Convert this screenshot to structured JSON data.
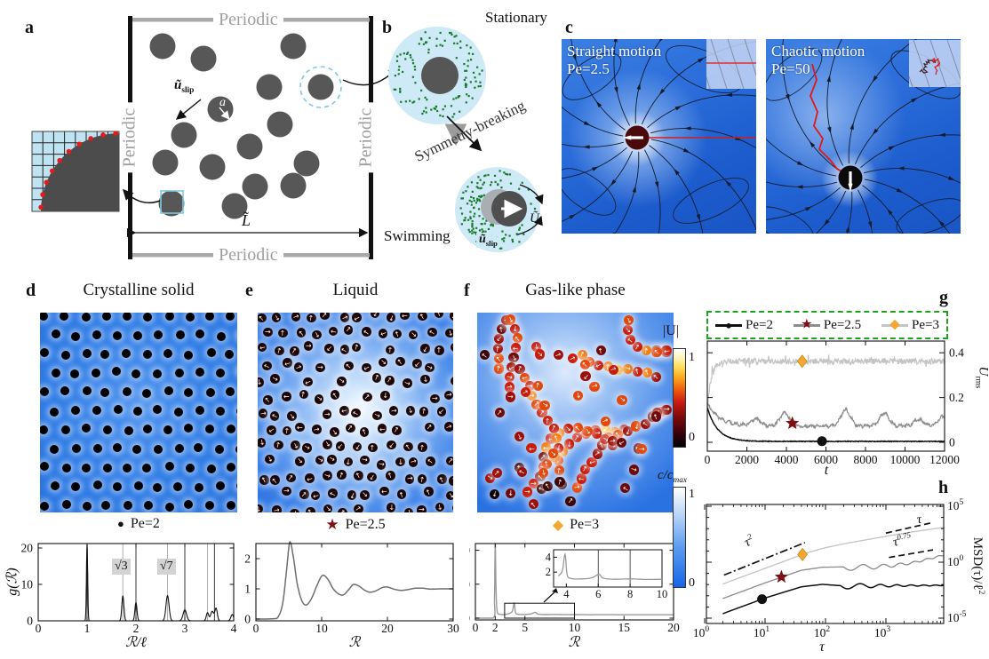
{
  "colors": {
    "star": "#7b1114",
    "diamond": "#f2a72e",
    "legend_border": "#1fa21f",
    "pe2": "#111111",
    "pe25": "#8c8c8c",
    "pe3": "#c4c4c4",
    "green_dot": "#1c7a2e",
    "red": "#d42020"
  },
  "figure_labels": {
    "a": "a",
    "b": "b",
    "c": "c",
    "d": "d",
    "e": "e",
    "f": "f",
    "g": "g",
    "h": "h"
  },
  "panel_a": {
    "periodic": "Periodic",
    "u_slip": "ũ",
    "u_slip_sub": "slip",
    "radius": "a",
    "length": "L̃"
  },
  "panel_b": {
    "stationary": "Stationary",
    "transition": "Symmetry-breaking",
    "swimming": "Swimming",
    "velocity": "Ũ",
    "u_slip": "ũ",
    "u_slip_sub": "slip"
  },
  "panel_c": {
    "left_title": "Straight motion",
    "left_pe": "Pe=2.5",
    "right_title": "Chaotic motion",
    "right_pe": "Pe=50"
  },
  "panel_d": {
    "title": "Crystalline solid",
    "legend_marker": "●",
    "legend": "Pe=2"
  },
  "panel_e": {
    "title": "Liquid",
    "legend_marker": "★",
    "legend": "Pe=2.5"
  },
  "panel_f": {
    "title": "Gas-like phase",
    "legend_marker": "◆",
    "legend": "Pe=3"
  },
  "colorbars": {
    "speed_label": "|U|",
    "speed_tick_top": "1",
    "speed_tick_bottom": "0",
    "conc_label": "c/c",
    "conc_label_sub": "max",
    "conc_tick_top": "1",
    "conc_tick_bottom": "0"
  },
  "panel_g": {
    "xlabel": "t",
    "ylabel": "U",
    "ylabel_sub": "rms"
  },
  "panel_h": {
    "xlabel": "τ",
    "ylabel": "MSD(τ)/ℓ",
    "ylabel_exp": "2"
  },
  "chart_data": [
    {
      "id": "gr_crystalline",
      "type": "line",
      "xlabel": "ℛ/ℓ",
      "ylabel": "g(ℛ)",
      "xlim": [
        0,
        4
      ],
      "ylim": [
        0,
        21.5
      ],
      "xticks": [
        0,
        1,
        2,
        3,
        4
      ],
      "yticks": [
        0,
        10,
        20
      ],
      "vlines_gray": [
        1.732,
        2.646,
        3.464
      ],
      "vlines_black": [
        1,
        2,
        3,
        3.606
      ],
      "annotations": [
        {
          "text": "√3",
          "x": 1.732
        },
        {
          "text": "√7",
          "x": 2.646
        }
      ],
      "peaks": [
        {
          "x": 1,
          "h": 21,
          "w": 0.018
        },
        {
          "x": 1.732,
          "h": 6.8,
          "w": 0.03
        },
        {
          "x": 2,
          "h": 5,
          "w": 0.03
        },
        {
          "x": 2.646,
          "h": 6.9,
          "w": 0.045
        },
        {
          "x": 3,
          "h": 3,
          "w": 0.05
        },
        {
          "x": 3.464,
          "h": 2.2,
          "w": 0.035
        },
        {
          "x": 3.56,
          "h": 2.6,
          "w": 0.045
        },
        {
          "x": 3.64,
          "h": 3.4,
          "w": 0.035
        },
        {
          "x": 3.97,
          "h": 1.7,
          "w": 0.04
        }
      ]
    },
    {
      "id": "gr_liquid",
      "type": "line",
      "xlabel": "ℛ",
      "xlim": [
        0,
        30
      ],
      "ylim": [
        0,
        2.7
      ],
      "xticks": [
        0,
        10,
        20,
        30
      ],
      "yticks": [
        0,
        1,
        2
      ],
      "points": [
        [
          0,
          0
        ],
        [
          2.6,
          0.01
        ],
        [
          3.4,
          0.08
        ],
        [
          4.1,
          0.55
        ],
        [
          4.7,
          1.7
        ],
        [
          5.15,
          2.55
        ],
        [
          5.7,
          2.05
        ],
        [
          6.3,
          1.15
        ],
        [
          7.0,
          0.6
        ],
        [
          7.7,
          0.47
        ],
        [
          8.5,
          0.7
        ],
        [
          9.3,
          1.12
        ],
        [
          10.1,
          1.44
        ],
        [
          10.9,
          1.33
        ],
        [
          11.7,
          1.02
        ],
        [
          12.5,
          0.84
        ],
        [
          13.3,
          0.8
        ],
        [
          14.1,
          0.97
        ],
        [
          14.8,
          1.14
        ],
        [
          15.6,
          1.1
        ],
        [
          16.5,
          0.96
        ],
        [
          17.3,
          0.89
        ],
        [
          18.2,
          0.93
        ],
        [
          19.2,
          1.04
        ],
        [
          20.0,
          1.06
        ],
        [
          21.0,
          0.99
        ],
        [
          22.0,
          0.95
        ],
        [
          23.0,
          0.97
        ],
        [
          24.2,
          1.02
        ],
        [
          25.4,
          1.02
        ],
        [
          26.6,
          0.99
        ],
        [
          28.0,
          1.0
        ],
        [
          30,
          1.0
        ]
      ]
    },
    {
      "id": "gr_gas",
      "type": "line",
      "xlabel": "ℛ",
      "xlim": [
        0,
        20
      ],
      "ylim": [
        0,
        22.5
      ],
      "xticks": [
        0,
        2,
        5,
        10,
        15,
        20
      ],
      "yticks": [
        0,
        10,
        20
      ],
      "points": [
        [
          0,
          0
        ],
        [
          1.8,
          0.02
        ],
        [
          1.93,
          6
        ],
        [
          2.0,
          22
        ],
        [
          2.08,
          9
        ],
        [
          2.2,
          2.0
        ],
        [
          2.5,
          1.15
        ],
        [
          3.0,
          1.1
        ],
        [
          3.5,
          1.5
        ],
        [
          3.75,
          2.2
        ],
        [
          3.92,
          4.4
        ],
        [
          4.05,
          1.7
        ],
        [
          4.3,
          1.15
        ],
        [
          5.0,
          1.1
        ],
        [
          5.6,
          1.25
        ],
        [
          6.05,
          1.7
        ],
        [
          6.3,
          1.2
        ],
        [
          7.0,
          1.05
        ],
        [
          8.0,
          1.1
        ],
        [
          9.0,
          1.02
        ],
        [
          10.0,
          1.05
        ],
        [
          11.5,
          1.0
        ],
        [
          13.0,
          1.02
        ],
        [
          15.0,
          1.0
        ],
        [
          17.5,
          1.0
        ],
        [
          20,
          1.0
        ]
      ],
      "zoom_rect": {
        "x": [
          2.95,
          10
        ],
        "y": [
          0,
          4.4
        ]
      },
      "inset": {
        "xlim": [
          3.2,
          10
        ],
        "ylim": [
          0,
          5
        ],
        "xticks": [
          4,
          6,
          8,
          10
        ],
        "yticks": [
          2,
          4
        ],
        "vlines": [
          6,
          8
        ]
      }
    },
    {
      "id": "u_rms",
      "type": "timeseries",
      "xlabel": "t",
      "ylabel": "U_rms",
      "xlim": [
        0,
        12000
      ],
      "xticks": [
        0,
        2000,
        4000,
        6000,
        8000,
        10000,
        12000
      ],
      "yticks": [
        0,
        0.2,
        0.4
      ],
      "legend": [
        {
          "label": "Pe=2",
          "marker": "●",
          "marker_color": "#111111",
          "line_color": "#111111"
        },
        {
          "label": "Pe=2.5",
          "marker": "★",
          "marker_color": "#7b1114",
          "line_color": "#8c8c8c"
        },
        {
          "label": "Pe=3",
          "marker": "◆",
          "marker_color": "#f2a72e",
          "line_color": "#c4c4c4"
        }
      ],
      "series": [
        {
          "label": "Pe=3",
          "color": "#c4c4c4",
          "plateau": 0.362,
          "start": 0.15,
          "tau": 200,
          "noise": 0.013,
          "marker": "diamond",
          "marker_at": [
            4800,
            0.362
          ]
        },
        {
          "label": "Pe=2.5",
          "color": "#8c8c8c",
          "plateau": 0.073,
          "start": 0.175,
          "tau": 600,
          "noise": 0.006,
          "bumps": [
            [
              2450,
              0.03
            ],
            [
              3900,
              0.058
            ],
            [
              7000,
              0.072
            ],
            [
              8950,
              0.058
            ],
            [
              10700,
              0.03
            ],
            [
              11900,
              0.04
            ]
          ],
          "marker": "star",
          "marker_at": [
            4300,
            0.085
          ]
        },
        {
          "label": "Pe=2",
          "color": "#111111",
          "plateau": 0.004,
          "start": 0.155,
          "tau": 520,
          "noise": 0.0015,
          "marker": "circle",
          "marker_at": [
            5800,
            0.005
          ]
        }
      ]
    },
    {
      "id": "msd",
      "type": "loglog",
      "xlabel": "τ",
      "ylabel": "MSD(τ)/ℓ²",
      "xtick_exponents": [
        0,
        1,
        2,
        3
      ],
      "ytick_exponents": [
        5,
        0,
        -5
      ],
      "series": [
        {
          "label": "Pe=3",
          "color": "#c4c4c4",
          "log_points": [
            [
              0.3,
              -1.95
            ],
            [
              0.8,
              -0.95
            ],
            [
              1.3,
              0.05
            ],
            [
              1.7,
              0.85
            ],
            [
              2.0,
              1.3
            ],
            [
              2.4,
              1.74
            ],
            [
              2.8,
              2.12
            ],
            [
              3.2,
              2.5
            ],
            [
              3.5,
              2.76
            ],
            [
              3.95,
              3.1
            ]
          ],
          "marker": "diamond",
          "marker_at": [
            1.62,
            0.69
          ]
        },
        {
          "label": "Pe=2.5",
          "color": "#8c8c8c",
          "log_points": [
            [
              0.3,
              -3.25
            ],
            [
              1.0,
              -1.85
            ],
            [
              1.6,
              -0.72
            ],
            [
              1.95,
              -0.45
            ],
            [
              2.3,
              -0.42
            ],
            [
              2.7,
              -0.45
            ],
            [
              3.1,
              -0.3
            ],
            [
              3.45,
              -0.05
            ],
            [
              3.95,
              0.62
            ]
          ],
          "osc": {
            "from": 2.3,
            "amp": 0.34,
            "decay": 1.1,
            "freq": 12
          },
          "marker": "star",
          "marker_at": [
            1.27,
            -1.32
          ]
        },
        {
          "label": "Pe=2",
          "color": "#111111",
          "log_points": [
            [
              0.3,
              -4.6
            ],
            [
              1.0,
              -3.2
            ],
            [
              1.6,
              -2.2
            ],
            [
              1.95,
              -1.98
            ],
            [
              2.25,
              -2.1
            ],
            [
              2.6,
              -2.12
            ],
            [
              3.95,
              -2.07
            ]
          ],
          "osc": {
            "from": 2.25,
            "amp": 0.32,
            "decay": 1.4,
            "freq": 12
          },
          "marker": "circle",
          "marker_at": [
            0.95,
            -3.3
          ]
        }
      ],
      "guides": [
        {
          "label_base": "τ",
          "label_exp": "2",
          "style": "dashdot",
          "x": [
            0.32,
            1.66
          ],
          "y": [
            -1.15,
            1.75
          ]
        },
        {
          "label_base": "τ",
          "label_exp": "",
          "style": "dashed",
          "x": [
            3.0,
            3.78
          ],
          "y": [
            2.6,
            3.55
          ]
        },
        {
          "label_base": "τ",
          "label_exp": "0.75",
          "style": "dashed",
          "x": [
            3.05,
            3.78
          ],
          "y": [
            0.42,
            1.1
          ]
        }
      ]
    }
  ]
}
